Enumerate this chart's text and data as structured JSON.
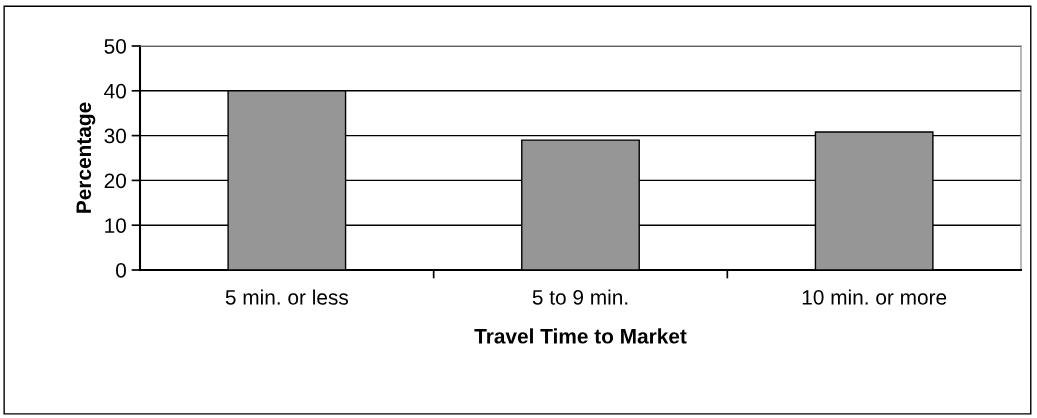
{
  "chart_data": {
    "type": "bar",
    "xlabel": "Travel Time to Market",
    "ylabel": "Percentage",
    "categories": [
      "5 min. or less",
      "5 to 9 min.",
      "10 min. or more"
    ],
    "values": [
      40,
      29,
      30.8
    ],
    "color": "#969696",
    "ylim": [
      0,
      50
    ],
    "yticks": [
      0,
      10,
      20,
      30,
      40,
      50
    ],
    "grid": "y",
    "legend": false
  }
}
